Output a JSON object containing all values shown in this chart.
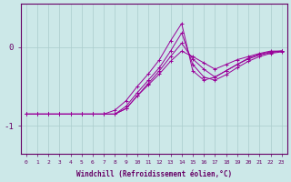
{
  "xlabel": "Windchill (Refroidissement éolien,°C)",
  "ylabel": "",
  "bg_color": "#cce8e8",
  "line_color": "#990099",
  "grid_color": "#aacccc",
  "axis_color": "#660066",
  "text_color": "#660066",
  "xlim": [
    -0.5,
    23.5
  ],
  "ylim": [
    -1.35,
    0.55
  ],
  "yticks": [
    0,
    -1
  ],
  "xticks": [
    0,
    1,
    2,
    3,
    4,
    5,
    6,
    7,
    8,
    9,
    10,
    11,
    12,
    13,
    14,
    15,
    16,
    17,
    18,
    19,
    20,
    21,
    22,
    23
  ],
  "x": [
    0,
    1,
    2,
    3,
    4,
    5,
    6,
    7,
    8,
    9,
    10,
    11,
    12,
    13,
    14,
    15,
    16,
    17,
    18,
    19,
    20,
    21,
    22,
    23
  ],
  "series": [
    [
      -0.85,
      -0.85,
      -0.85,
      -0.85,
      -0.85,
      -0.85,
      -0.85,
      -0.85,
      -0.85,
      -0.78,
      -0.62,
      -0.48,
      -0.34,
      -0.18,
      -0.05,
      -0.12,
      -0.2,
      -0.28,
      -0.22,
      -0.16,
      -0.12,
      -0.08,
      -0.05,
      -0.05
    ],
    [
      -0.85,
      -0.85,
      -0.85,
      -0.85,
      -0.85,
      -0.85,
      -0.85,
      -0.85,
      -0.85,
      -0.78,
      -0.62,
      -0.46,
      -0.3,
      -0.12,
      0.05,
      -0.15,
      -0.28,
      -0.38,
      -0.3,
      -0.22,
      -0.15,
      -0.1,
      -0.07,
      -0.05
    ],
    [
      -0.85,
      -0.85,
      -0.85,
      -0.85,
      -0.85,
      -0.85,
      -0.85,
      -0.85,
      -0.85,
      -0.75,
      -0.58,
      -0.42,
      -0.26,
      -0.05,
      0.18,
      -0.22,
      -0.38,
      -0.42,
      -0.35,
      -0.26,
      -0.18,
      -0.12,
      -0.08,
      -0.06
    ],
    [
      -0.85,
      -0.85,
      -0.85,
      -0.85,
      -0.85,
      -0.85,
      -0.85,
      -0.85,
      -0.8,
      -0.68,
      -0.5,
      -0.34,
      -0.16,
      0.08,
      0.3,
      -0.3,
      -0.42,
      -0.38,
      -0.3,
      -0.22,
      -0.14,
      -0.09,
      -0.06,
      -0.05
    ]
  ]
}
